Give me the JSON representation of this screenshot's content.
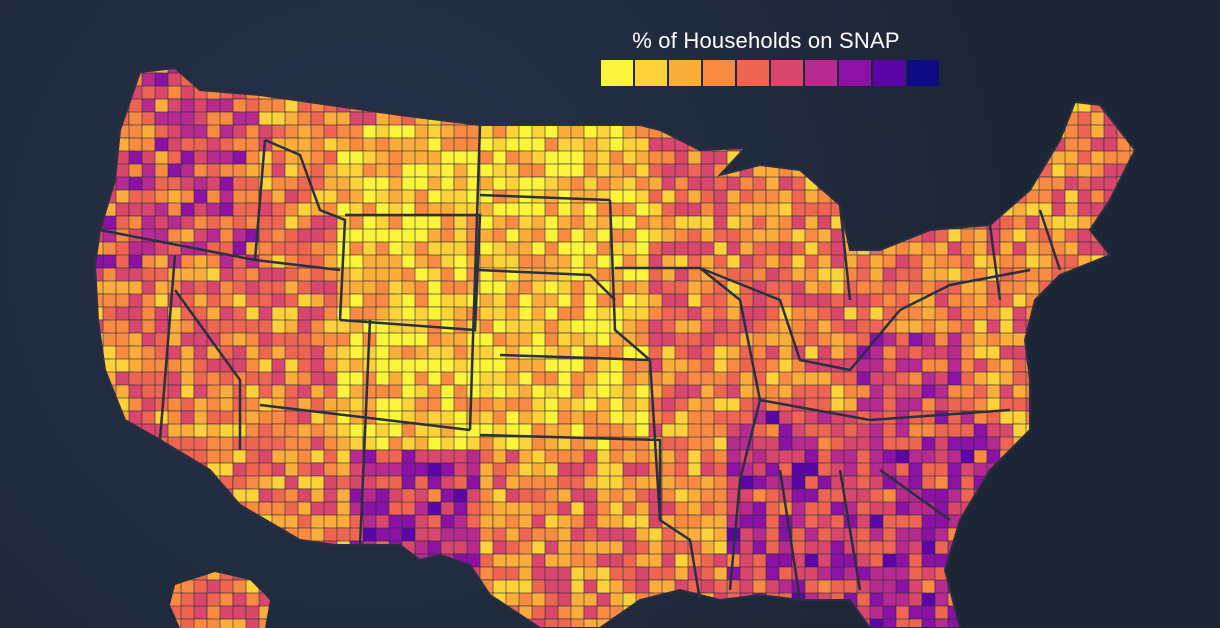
{
  "legend": {
    "title": "% of Households on SNAP",
    "colors": [
      "#fbf43a",
      "#fcd23a",
      "#fbad3c",
      "#f88a42",
      "#ee6652",
      "#d9476c",
      "#b72a8f",
      "#8c12a6",
      "#5c06a8",
      "#0d0a83"
    ]
  },
  "map": {
    "background": "#1f2838",
    "border_color": "#2b2f3f",
    "no_data_color": "#ffffff"
  }
}
